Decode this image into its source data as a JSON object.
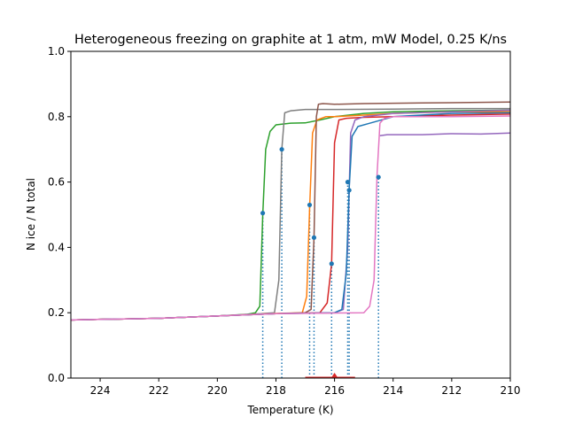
{
  "chart_data": {
    "type": "line",
    "title": "Heterogeneous freezing on graphite at 1 atm, mW Model, 0.25 K/ns",
    "xlabel": "Temperature (K)",
    "ylabel": "N ice / N total",
    "xlim": [
      225,
      210
    ],
    "ylim": [
      0.0,
      1.0
    ],
    "x_ticks": [
      224,
      222,
      220,
      218,
      216,
      214,
      212,
      210
    ],
    "y_ticks": [
      0.0,
      0.2,
      0.4,
      0.6,
      0.8,
      1.0
    ],
    "x_tick_labels": [
      "224",
      "222",
      "220",
      "218",
      "216",
      "214",
      "212",
      "210"
    ],
    "y_tick_labels": [
      "0.0",
      "0.2",
      "0.4",
      "0.6",
      "0.8",
      "1.0"
    ],
    "grid": false,
    "series": [
      {
        "color": "#2ca02c",
        "x": [
          225,
          222,
          220,
          219.0,
          218.7,
          218.55,
          218.45,
          218.35,
          218.2,
          218.0,
          217.5,
          217.0,
          216.5,
          216.0,
          215.0,
          214.0,
          212.0,
          210
        ],
        "y": [
          0.178,
          0.183,
          0.19,
          0.195,
          0.2,
          0.22,
          0.5,
          0.7,
          0.755,
          0.775,
          0.78,
          0.781,
          0.79,
          0.8,
          0.81,
          0.815,
          0.818,
          0.82
        ]
      },
      {
        "color": "#7f7f7f",
        "x": [
          225,
          222,
          220,
          218.5,
          218.05,
          217.9,
          217.8,
          217.7,
          217.5,
          217.0,
          216.0,
          214.0,
          212.0,
          210
        ],
        "y": [
          0.178,
          0.183,
          0.19,
          0.197,
          0.2,
          0.3,
          0.7,
          0.812,
          0.818,
          0.822,
          0.822,
          0.823,
          0.825,
          0.825
        ]
      },
      {
        "color": "#ff7f0e",
        "x": [
          225,
          222,
          220,
          218,
          217.1,
          216.95,
          216.85,
          216.75,
          216.6,
          216.3,
          216.0,
          215.0,
          214.0,
          212.0,
          210
        ],
        "y": [
          0.178,
          0.183,
          0.19,
          0.198,
          0.2,
          0.25,
          0.52,
          0.75,
          0.79,
          0.8,
          0.8,
          0.805,
          0.81,
          0.815,
          0.815
        ]
      },
      {
        "color": "#8c564b",
        "x": [
          225,
          222,
          220,
          218,
          217.0,
          216.8,
          216.7,
          216.62,
          216.55,
          216.4,
          216.0,
          215.0,
          213.0,
          210
        ],
        "y": [
          0.178,
          0.183,
          0.19,
          0.197,
          0.2,
          0.21,
          0.43,
          0.8,
          0.838,
          0.84,
          0.838,
          0.84,
          0.842,
          0.845
        ]
      },
      {
        "color": "#d62728",
        "x": [
          225,
          222,
          220,
          218,
          216.5,
          216.25,
          216.1,
          216.0,
          215.85,
          215.6,
          215.0,
          214.0,
          212.0,
          210
        ],
        "y": [
          0.178,
          0.183,
          0.19,
          0.197,
          0.2,
          0.23,
          0.35,
          0.72,
          0.79,
          0.795,
          0.798,
          0.8,
          0.805,
          0.808
        ]
      },
      {
        "color": "#9467bd",
        "x": [
          225,
          222,
          220,
          218,
          216.0,
          215.7,
          215.55,
          215.45,
          215.3,
          215.0,
          214.5,
          214.0,
          212.0,
          210
        ],
        "y": [
          0.178,
          0.183,
          0.19,
          0.197,
          0.2,
          0.21,
          0.4,
          0.75,
          0.79,
          0.8,
          0.805,
          0.81,
          0.815,
          0.82
        ]
      },
      {
        "color": "#1f77b4",
        "x": [
          225,
          222,
          220,
          218,
          216.0,
          215.75,
          215.6,
          215.5,
          215.4,
          215.2,
          214.8,
          214.0,
          212.0,
          210
        ],
        "y": [
          0.178,
          0.183,
          0.19,
          0.197,
          0.2,
          0.21,
          0.32,
          0.58,
          0.74,
          0.77,
          0.78,
          0.8,
          0.81,
          0.812
        ]
      },
      {
        "color": "#e377c2",
        "x": [
          225,
          222,
          220,
          218,
          215.0,
          214.8,
          214.65,
          214.55,
          214.45,
          214.3,
          214.0,
          213.0,
          212.0,
          210
        ],
        "y": [
          0.178,
          0.183,
          0.19,
          0.197,
          0.2,
          0.22,
          0.3,
          0.62,
          0.78,
          0.795,
          0.8,
          0.8,
          0.8,
          0.802
        ]
      },
      {
        "color": "#9467bd",
        "x": [
          214.45,
          214.2,
          213.0,
          212.0,
          211.0,
          210
        ],
        "y": [
          0.742,
          0.745,
          0.745,
          0.748,
          0.747,
          0.75
        ]
      }
    ],
    "markers": {
      "color": "#1f77b4",
      "x": [
        218.45,
        217.8,
        216.85,
        216.7,
        216.1,
        215.55,
        215.5,
        214.5
      ],
      "y": [
        0.505,
        0.7,
        0.53,
        0.43,
        0.35,
        0.6,
        0.575,
        0.615
      ]
    },
    "vlines": {
      "color": "#1f77b4",
      "style": "dotted",
      "x": [
        218.45,
        217.8,
        216.85,
        216.7,
        216.1,
        215.55,
        215.5,
        214.5
      ]
    },
    "bottom_marker": {
      "color": "#d62728",
      "x": [
        217,
        215.3
      ],
      "peak_x": 216.0
    }
  }
}
